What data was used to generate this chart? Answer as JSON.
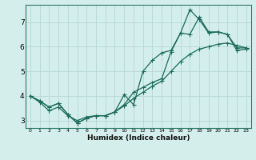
{
  "xlabel": "Humidex (Indice chaleur)",
  "bg_color": "#d4eeeb",
  "grid_color": "#b8dbd8",
  "line_color": "#1a6b5a",
  "xlim": [
    -0.5,
    23.5
  ],
  "ylim": [
    2.7,
    7.7
  ],
  "xticks": [
    0,
    1,
    2,
    3,
    4,
    5,
    6,
    7,
    8,
    9,
    10,
    11,
    12,
    13,
    14,
    15,
    16,
    17,
    18,
    19,
    20,
    21,
    22,
    23
  ],
  "yticks": [
    3,
    4,
    5,
    6,
    7
  ],
  "line1_x": [
    0,
    1,
    2,
    3,
    4,
    5,
    6,
    7,
    8,
    9,
    10,
    11,
    12,
    13,
    14,
    15,
    16,
    17,
    18,
    19,
    20,
    21,
    22,
    23
  ],
  "line1_y": [
    4.0,
    3.8,
    3.55,
    3.7,
    3.25,
    2.9,
    3.1,
    3.2,
    3.2,
    3.35,
    4.05,
    3.65,
    5.0,
    5.45,
    5.75,
    5.85,
    6.55,
    7.5,
    7.1,
    6.55,
    6.6,
    6.5,
    5.95,
    5.95
  ],
  "line2_x": [
    0,
    1,
    2,
    3,
    4,
    5,
    6,
    7,
    8,
    9,
    10,
    11,
    12,
    13,
    14,
    15,
    16,
    17,
    18,
    19,
    20,
    21,
    22,
    23
  ],
  "line2_y": [
    4.0,
    3.8,
    3.55,
    3.7,
    3.25,
    2.9,
    3.1,
    3.2,
    3.2,
    3.35,
    3.65,
    4.15,
    4.35,
    4.55,
    4.7,
    5.8,
    6.55,
    6.5,
    7.2,
    6.6,
    6.6,
    6.5,
    5.85,
    5.9
  ],
  "line3_x": [
    0,
    1,
    2,
    3,
    4,
    5,
    6,
    7,
    8,
    9,
    10,
    11,
    12,
    13,
    14,
    15,
    16,
    17,
    18,
    19,
    20,
    21,
    22,
    23
  ],
  "line3_y": [
    4.0,
    3.75,
    3.4,
    3.55,
    3.2,
    3.0,
    3.15,
    3.2,
    3.2,
    3.35,
    3.6,
    3.9,
    4.15,
    4.4,
    4.6,
    5.0,
    5.4,
    5.7,
    5.9,
    6.0,
    6.1,
    6.15,
    6.05,
    5.95
  ]
}
